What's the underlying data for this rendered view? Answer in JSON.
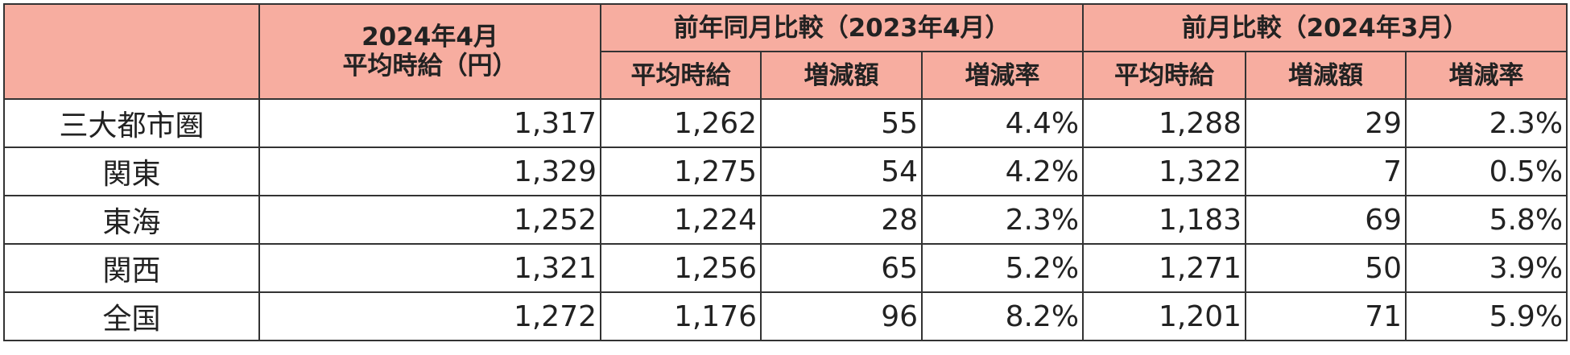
{
  "header": {
    "current": [
      "2024年4月",
      "平均時給（円）"
    ],
    "groups": [
      {
        "title": "前年同月比較（2023年4月）",
        "subcolumns": [
          "平均時給",
          "増減額",
          "増減率"
        ]
      },
      {
        "title": "前月比較（2024年3月）",
        "subcolumns": [
          "平均時給",
          "増減額",
          "増減率"
        ]
      }
    ]
  },
  "rows": [
    {
      "label": "三大都市圏",
      "values": [
        "1,317",
        "1,262",
        "55",
        "4.4%",
        "1,288",
        "29",
        "2.3%"
      ]
    },
    {
      "label": "関東",
      "values": [
        "1,329",
        "1,275",
        "54",
        "4.2%",
        "1,322",
        "7",
        "0.5%"
      ]
    },
    {
      "label": "東海",
      "values": [
        "1,252",
        "1,224",
        "28",
        "2.3%",
        "1,183",
        "69",
        "5.8%"
      ]
    },
    {
      "label": "関西",
      "values": [
        "1,321",
        "1,256",
        "65",
        "5.2%",
        "1,271",
        "50",
        "3.9%"
      ]
    },
    {
      "label": "全国",
      "values": [
        "1,272",
        "1,176",
        "96",
        "8.2%",
        "1,201",
        "71",
        "5.9%"
      ]
    }
  ]
}
